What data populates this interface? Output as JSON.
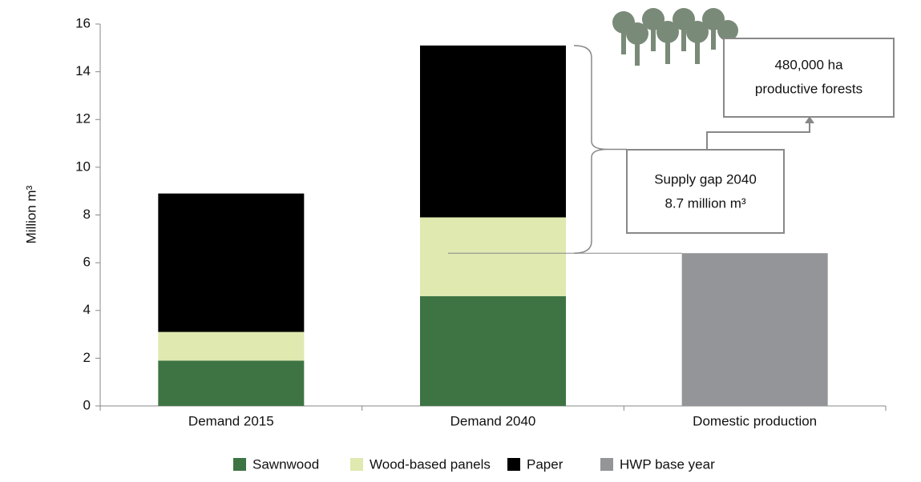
{
  "chart_data": {
    "type": "stacked-bar",
    "y_label": "Million m³",
    "categories": [
      "Demand 2015",
      "Demand 2040",
      "Domestic production"
    ],
    "series": [
      {
        "name": "Sawnwood",
        "color": "#3e7443",
        "values": [
          1.9,
          4.6,
          null
        ]
      },
      {
        "name": "Wood-based panels",
        "color": "#dfe9b0",
        "values": [
          1.2,
          3.3,
          null
        ]
      },
      {
        "name": "Paper",
        "color": "#000000",
        "values": [
          5.8,
          7.2,
          null
        ]
      },
      {
        "name": "HWP base year",
        "color": "#939598",
        "values": [
          null,
          null,
          6.4
        ]
      }
    ],
    "ylim": [
      0,
      16
    ],
    "yticks": [
      0,
      2,
      4,
      6,
      8,
      10,
      12,
      14,
      16
    ],
    "annotations": [
      "Supply gap 2040",
      "8.7 million m³",
      "480,000 ha",
      "productive forests"
    ],
    "legend": "bottom"
  }
}
